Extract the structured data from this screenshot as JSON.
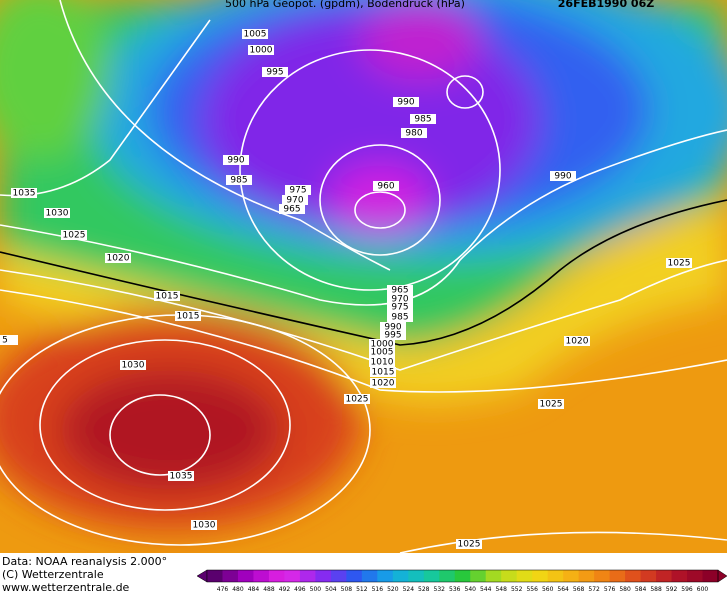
{
  "header": {
    "title": "500 hPa Geopot. (gpdm), Bodendruck (hPa)",
    "date": "26FEB1990 06Z"
  },
  "isobar_labels": [
    "1005",
    "1000",
    "995",
    "990",
    "985",
    "980",
    "990",
    "985",
    "975",
    "970",
    "965",
    "960",
    "990",
    "1035",
    "1030",
    "1025",
    "1020",
    "1015",
    "1015",
    "5",
    "965",
    "970",
    "975",
    "985",
    "990",
    "995",
    "1000",
    "1005",
    "1010",
    "1015",
    "1020",
    "1025",
    "1030",
    "1035",
    "1030",
    "1025",
    "1020",
    "1025",
    "1025"
  ],
  "footer": {
    "source": "Data: NOAA reanalysis 2.000°",
    "copyright": "(C) Wetterzentrale",
    "url": "www.wetterzentrale.de"
  },
  "colorbar": {
    "ticks": [
      476,
      480,
      484,
      488,
      492,
      496,
      500,
      504,
      508,
      512,
      516,
      520,
      524,
      528,
      532,
      536,
      540,
      544,
      548,
      552,
      556,
      560,
      564,
      568,
      572,
      576,
      580,
      584,
      588,
      592,
      596,
      600
    ]
  }
}
